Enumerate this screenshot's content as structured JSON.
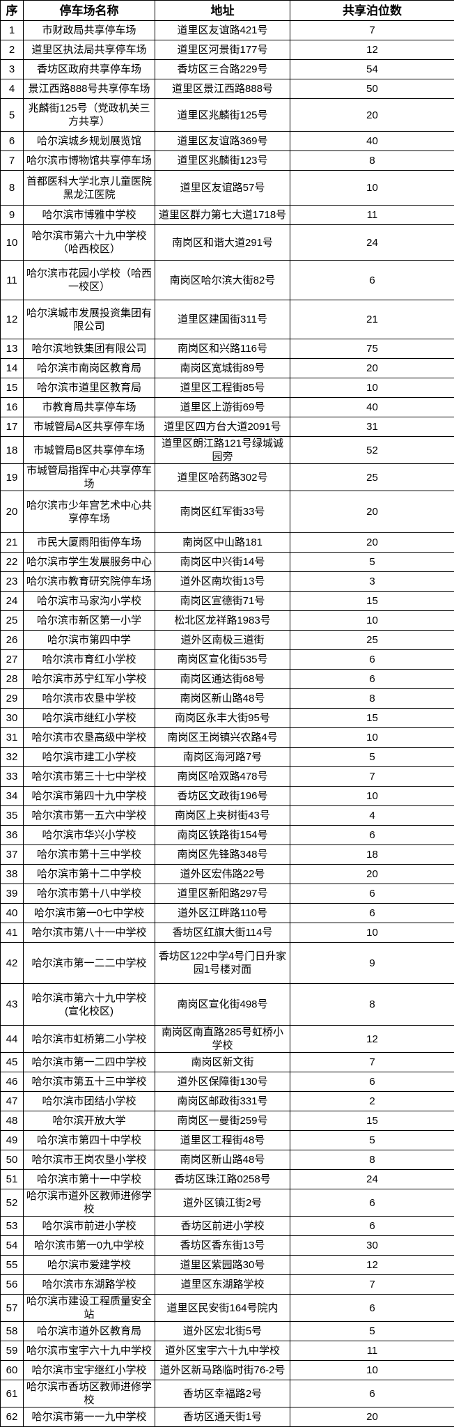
{
  "table": {
    "headers": [
      "序",
      "停车场名称",
      "地址",
      "共享泊位数"
    ],
    "rows": [
      [
        "1",
        "市财政局共享停车场",
        "道里区友谊路421号",
        "7"
      ],
      [
        "2",
        "道里区执法局共享停车场",
        "道里区河景街177号",
        "12"
      ],
      [
        "3",
        "香坊区政府共享停车场",
        "香坊区三合路229号",
        "54"
      ],
      [
        "4",
        "景江西路888号共享停车场",
        "道里区景江西路888号",
        "50"
      ],
      [
        "5",
        "兆麟街125号（党政机关三方共享）",
        "道里区兆麟街125号",
        "20"
      ],
      [
        "6",
        "哈尔滨城乡规划展览馆",
        "道里区友谊路369号",
        "40"
      ],
      [
        "7",
        "哈尔滨市博物馆共享停车场",
        "道里区兆麟街123号",
        "8"
      ],
      [
        "8",
        "首都医科大学北京儿童医院黑龙江医院",
        "道里区友谊路57号",
        "10"
      ],
      [
        "9",
        "哈尔滨市博雅中学校",
        "道里区群力第七大道1718号",
        "11"
      ],
      [
        "10",
        "哈尔滨市第六十九中学校（哈西校区）",
        "南岗区和谐大道291号",
        "24"
      ],
      [
        "11",
        "哈尔滨市花园小学校（哈西一校区）",
        "南岗区哈尔滨大街82号",
        "6"
      ],
      [
        "12",
        "哈尔滨城市发展投资集团有限公司",
        "道里区建国街311号",
        "21"
      ],
      [
        "13",
        "哈尔滨地铁集团有限公司",
        "南岗区和兴路116号",
        "75"
      ],
      [
        "14",
        "哈尔滨市南岗区教育局",
        "南岗区宽城街89号",
        "20"
      ],
      [
        "15",
        "哈尔滨市道里区教育局",
        "道里区工程街85号",
        "10"
      ],
      [
        "16",
        "市教育局共享停车场",
        "道里区上游街69号",
        "40"
      ],
      [
        "17",
        "市城管局A区共享停车场",
        "道里区四方台大道2091号",
        "31"
      ],
      [
        "18",
        "市城管局B区共享停车场",
        "道里区朗江路121号绿城诚园旁",
        "52"
      ],
      [
        "19",
        "市城管局指挥中心共享停车场",
        "道里区哈药路302号",
        "25"
      ],
      [
        "20",
        "哈尔滨市少年宫艺术中心共享停车场",
        "南岗区红军街33号",
        "20"
      ],
      [
        "21",
        "市民大厦雨阳街停车场",
        "南岗区中山路181",
        "20"
      ],
      [
        "22",
        "哈尔滨市学生发展服务中心",
        "南岗区中兴街14号",
        "5"
      ],
      [
        "23",
        "哈尔滨市教育研究院停车场",
        "道外区南坎街13号",
        "3"
      ],
      [
        "24",
        "哈尔滨市马家沟小学校",
        "南岗区宣德街71号",
        "15"
      ],
      [
        "25",
        "哈尔滨市新区第一小学",
        "松北区龙祥路1983号",
        "10"
      ],
      [
        "26",
        "哈尔滨市第四中学",
        "道外区南极三道街",
        "25"
      ],
      [
        "27",
        "哈尔滨市育红小学校",
        "南岗区宣化街535号",
        "6"
      ],
      [
        "28",
        "哈尔滨市苏宁红军小学校",
        "南岗区通达街68号",
        "6"
      ],
      [
        "29",
        "哈尔滨市农垦中学校",
        "南岗区新山路48号",
        "8"
      ],
      [
        "30",
        "哈尔滨市继红小学校",
        "南岗区永丰大街95号",
        "15"
      ],
      [
        "31",
        "哈尔滨市农垦高级中学校",
        "南岗区王岗镇兴农路4号",
        "10"
      ],
      [
        "32",
        "哈尔滨市建工小学校",
        "南岗区海河路7号",
        "5"
      ],
      [
        "33",
        "哈尔滨市第三十七中学校",
        "南岗区哈双路478号",
        "7"
      ],
      [
        "34",
        "哈尔滨市第四十九中学校",
        "香坊区文政街196号",
        "10"
      ],
      [
        "35",
        "哈尔滨市第一五六中学校",
        "南岗区上夹树街43号",
        "4"
      ],
      [
        "36",
        "哈尔滨市华兴小学校",
        "南岗区铁路街154号",
        "6"
      ],
      [
        "37",
        "哈尔滨市第十三中学校",
        "南岗区先锋路348号",
        "18"
      ],
      [
        "38",
        "哈尔滨市第十二中学校",
        "道外区宏伟路22号",
        "20"
      ],
      [
        "39",
        "哈尔滨市第十八中学校",
        "道里区新阳路297号",
        "6"
      ],
      [
        "40",
        "哈尔滨市第一0七中学校",
        "道外区江畔路110号",
        "6"
      ],
      [
        "41",
        "哈尔滨市第八十一中学校",
        "香坊区红旗大街114号",
        "10"
      ],
      [
        "42",
        "哈尔滨市第一二二中学校",
        "香坊区122中学4号门日升家园1号楼对面",
        "9"
      ],
      [
        "43",
        "哈尔滨市第六十九中学校(宣化校区)",
        "南岗区宣化街498号",
        "8"
      ],
      [
        "44",
        "哈尔滨市虹桥第二小学校",
        "南岗区南直路285号虹桥小学校",
        "12"
      ],
      [
        "45",
        "哈尔滨市第一二四中学校",
        "南岗区新文街",
        "7"
      ],
      [
        "46",
        "哈尔滨市第五十三中学校",
        "道外区保障街130号",
        "6"
      ],
      [
        "47",
        "哈尔滨市团结小学校",
        "南岗区邮政街331号",
        "2"
      ],
      [
        "48",
        "哈尔滨开放大学",
        "南岗区一曼街259号",
        "15"
      ],
      [
        "49",
        "哈尔滨市第四十中学校",
        "道里区工程街48号",
        "5"
      ],
      [
        "50",
        "哈尔滨市王岗农垦小学校",
        "南岗区新山路48号",
        "8"
      ],
      [
        "51",
        "哈尔滨市第十一中学校",
        "香坊区珠江路0258号",
        "24"
      ],
      [
        "52",
        "哈尔滨市道外区教师进修学校",
        "道外区镇江街2号",
        "6"
      ],
      [
        "53",
        "哈尔滨市前进小学校",
        "香坊区前进小学校",
        "6"
      ],
      [
        "54",
        "哈尔滨市第一0九中学校",
        "香坊区香东街13号",
        "30"
      ],
      [
        "55",
        "哈尔滨市爱建学校",
        "道里区紫园路30号",
        "12"
      ],
      [
        "56",
        "哈尔滨市东湖路学校",
        "道里区东湖路学校",
        "7"
      ],
      [
        "57",
        "哈尔滨市建设工程质量安全站",
        "道里区民安街164号院内",
        "6"
      ],
      [
        "58",
        "哈尔滨市道外区教育局",
        "道外区宏北街5号",
        "5"
      ],
      [
        "59",
        "哈尔滨市宝宇六十九中学校",
        "道外区宝宇六十九中学校",
        "11"
      ],
      [
        "60",
        "哈尔滨市宝宇继红小学校",
        "道外区新马路临时街76-2号",
        "10"
      ],
      [
        "61",
        "哈尔滨市香坊区教师进修学校",
        "香坊区幸福路2号",
        "6"
      ],
      [
        "62",
        "哈尔滨市第一一九中学校",
        "香坊区通天街1号",
        "20"
      ]
    ]
  }
}
